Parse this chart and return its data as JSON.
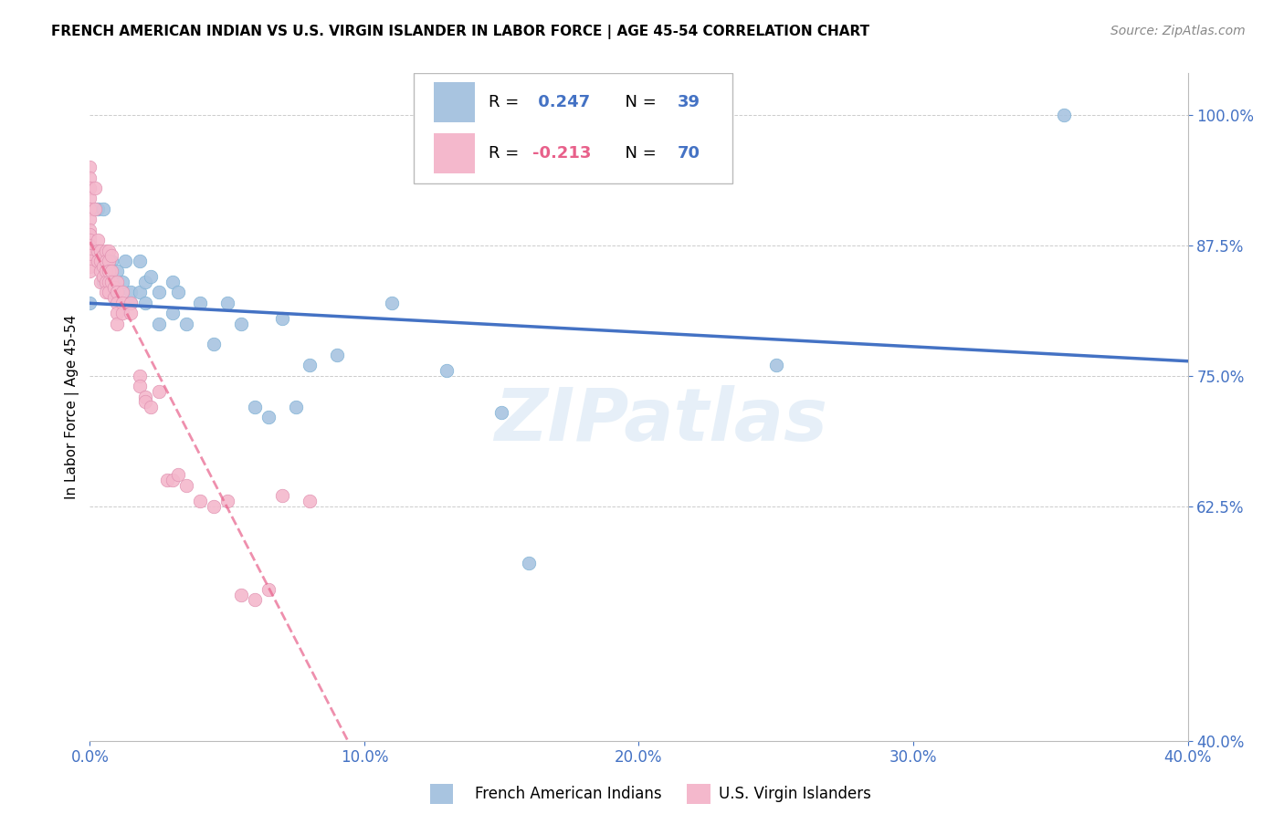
{
  "title": "FRENCH AMERICAN INDIAN VS U.S. VIRGIN ISLANDER IN LABOR FORCE | AGE 45-54 CORRELATION CHART",
  "source": "Source: ZipAtlas.com",
  "ylabel": "In Labor Force | Age 45-54",
  "x_tick_labels": [
    "0.0%",
    "10.0%",
    "20.0%",
    "30.0%",
    "40.0%"
  ],
  "x_tick_values": [
    0.0,
    10.0,
    20.0,
    30.0,
    40.0
  ],
  "y_tick_labels": [
    "40.0%",
    "62.5%",
    "75.0%",
    "87.5%",
    "100.0%"
  ],
  "y_tick_values": [
    40.0,
    62.5,
    75.0,
    87.5,
    100.0
  ],
  "xlim": [
    0.0,
    40.0
  ],
  "ylim": [
    40.0,
    104.0
  ],
  "legend_color1": "#a8c4e0",
  "legend_color2": "#f4b8cc",
  "scatter_color1": "#a8c4e0",
  "scatter_color2": "#f4b8cc",
  "line_color1": "#4472c4",
  "line_color2": "#e8608a",
  "blue_text_color": "#4472c4",
  "pink_text_color": "#e8608a",
  "watermark": "ZIPatlas",
  "r1": "0.247",
  "n1": "39",
  "r2": "-0.213",
  "n2": "70",
  "french_american_indians_x": [
    0.0,
    0.3,
    0.5,
    0.5,
    0.7,
    0.8,
    1.0,
    1.0,
    1.2,
    1.3,
    1.5,
    1.5,
    1.8,
    1.8,
    2.0,
    2.0,
    2.2,
    2.5,
    2.5,
    3.0,
    3.0,
    3.2,
    3.5,
    4.0,
    4.5,
    5.0,
    5.5,
    6.0,
    6.5,
    7.0,
    7.5,
    8.0,
    9.0,
    11.0,
    13.0,
    15.0,
    16.0,
    25.0,
    35.5
  ],
  "french_american_indians_y": [
    82.0,
    91.0,
    84.0,
    91.0,
    86.0,
    86.0,
    85.0,
    83.0,
    84.0,
    86.0,
    82.0,
    83.0,
    86.0,
    83.0,
    84.0,
    82.0,
    84.5,
    83.0,
    80.0,
    84.0,
    81.0,
    83.0,
    80.0,
    82.0,
    78.0,
    82.0,
    80.0,
    72.0,
    71.0,
    80.5,
    72.0,
    76.0,
    77.0,
    82.0,
    75.5,
    71.5,
    57.0,
    76.0,
    100.0
  ],
  "virgin_islanders_x": [
    0.0,
    0.0,
    0.0,
    0.0,
    0.0,
    0.0,
    0.0,
    0.0,
    0.0,
    0.0,
    0.0,
    0.0,
    0.0,
    0.0,
    0.0,
    0.2,
    0.2,
    0.3,
    0.3,
    0.3,
    0.4,
    0.4,
    0.4,
    0.4,
    0.5,
    0.5,
    0.5,
    0.6,
    0.6,
    0.6,
    0.6,
    0.6,
    0.7,
    0.7,
    0.7,
    0.7,
    0.7,
    0.8,
    0.8,
    0.8,
    0.9,
    0.9,
    1.0,
    1.0,
    1.0,
    1.0,
    1.0,
    1.2,
    1.2,
    1.2,
    1.5,
    1.5,
    1.8,
    1.8,
    2.0,
    2.0,
    2.2,
    2.5,
    2.8,
    3.0,
    3.2,
    3.5,
    4.0,
    4.5,
    5.0,
    5.5,
    6.0,
    6.5,
    7.0,
    8.0
  ],
  "virgin_islanders_y": [
    95.0,
    94.0,
    93.0,
    92.0,
    91.0,
    90.0,
    89.0,
    88.5,
    88.0,
    87.5,
    87.0,
    86.5,
    86.0,
    85.5,
    85.0,
    93.0,
    91.0,
    88.0,
    87.0,
    86.0,
    87.0,
    86.0,
    85.0,
    84.0,
    86.5,
    85.5,
    84.5,
    87.0,
    86.0,
    85.0,
    84.0,
    83.0,
    87.0,
    86.0,
    85.0,
    84.0,
    83.0,
    86.5,
    85.0,
    84.0,
    83.5,
    82.5,
    84.0,
    83.0,
    82.0,
    81.0,
    80.0,
    83.0,
    82.0,
    81.0,
    82.0,
    81.0,
    75.0,
    74.0,
    73.0,
    72.5,
    72.0,
    73.5,
    65.0,
    65.0,
    65.5,
    64.5,
    63.0,
    62.5,
    63.0,
    54.0,
    53.5,
    54.5,
    63.5,
    63.0
  ]
}
